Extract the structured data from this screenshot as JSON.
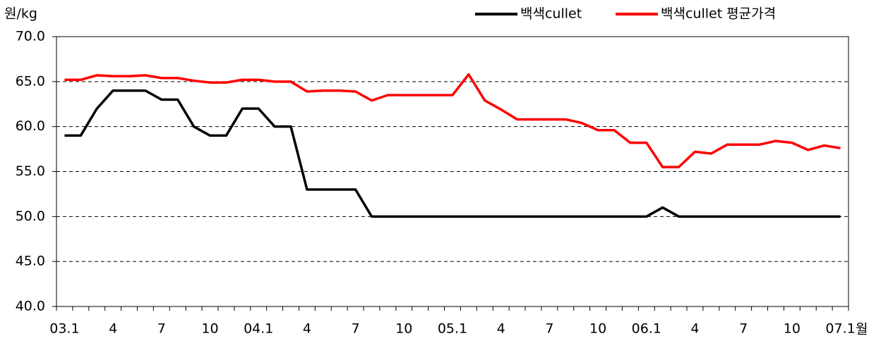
{
  "chart_data": {
    "type": "line",
    "y_label": "원/kg",
    "x_label": "월",
    "categories": [
      "03.1",
      null,
      null,
      "4",
      null,
      null,
      "7",
      null,
      null,
      "10",
      null,
      null,
      "04.1",
      null,
      null,
      "4",
      null,
      null,
      "7",
      null,
      null,
      "10",
      null,
      null,
      "05.1",
      null,
      null,
      "4",
      null,
      null,
      "7",
      null,
      null,
      "10",
      null,
      null,
      "06.1",
      null,
      null,
      "4",
      null,
      null,
      "7",
      null,
      null,
      "10",
      null,
      null,
      "07.1"
    ],
    "series": [
      {
        "name": "백색cullet",
        "color": "#000000",
        "values": [
          59,
          59,
          62,
          64,
          64,
          64,
          63,
          63,
          60,
          59,
          59,
          62,
          62,
          60,
          60,
          53,
          53,
          53,
          53,
          50,
          50,
          50,
          50,
          50,
          50,
          50,
          50,
          50,
          50,
          50,
          50,
          50,
          50,
          50,
          50,
          50,
          50,
          51,
          50,
          50,
          50,
          50,
          50,
          50,
          50,
          50,
          50,
          50,
          50
        ]
      },
      {
        "name": "백색cullet 평균가격",
        "color": "#ff0000",
        "values": [
          65.2,
          65.2,
          65.7,
          65.6,
          65.6,
          65.7,
          65.4,
          65.4,
          65.1,
          64.9,
          64.9,
          65.2,
          65.2,
          65.0,
          65.0,
          63.9,
          64.0,
          64.0,
          63.9,
          62.9,
          63.5,
          63.5,
          63.5,
          63.5,
          63.5,
          65.8,
          62.9,
          61.9,
          60.8,
          60.8,
          60.8,
          60.8,
          60.4,
          59.6,
          59.6,
          58.2,
          58.2,
          55.5,
          55.5,
          57.2,
          57.0,
          58.0,
          58.0,
          58.0,
          58.4,
          58.2,
          57.4,
          57.9,
          57.6
        ]
      }
    ],
    "ylim": [
      40,
      70
    ],
    "yticks": [
      {
        "value": 40,
        "label": "40.0"
      },
      {
        "value": 45,
        "label": "45.0"
      },
      {
        "value": 50,
        "label": "50.0"
      },
      {
        "value": 55,
        "label": "55.0"
      },
      {
        "value": 60,
        "label": "60.0"
      },
      {
        "value": 65,
        "label": "65.0"
      },
      {
        "value": 70,
        "label": "70.0"
      }
    ],
    "grid": true,
    "legend": "top-right"
  }
}
